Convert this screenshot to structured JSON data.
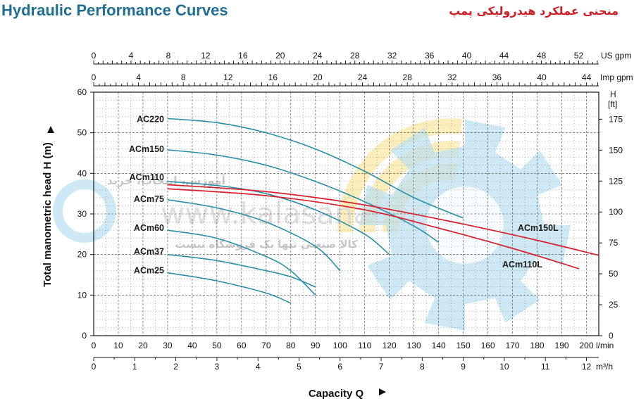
{
  "header": {
    "title_en": "Hydraulic Performance Curves",
    "title_fa": "منحنی عملکرد هیدرولیکی پمپ"
  },
  "watermark": {
    "line1": "آموزش، انتخاب، خرید",
    "line2": "www.kalasanati.ir",
    "line3": "کالا صنعتی تنها یک فروشگاه نیست"
  },
  "colors": {
    "blue_curve": "#2a8fa6",
    "red_curve": "#d81e2c",
    "grid": "#333333",
    "title": "#1f6f93",
    "title_fa": "#cc2026",
    "watermark_blue": "#b9dff0",
    "watermark_yellow": "#fbe7a6"
  },
  "chart_data": {
    "type": "line",
    "xlabel": "Capacity Q",
    "ylabel": "Total manometric head H (m)",
    "x_unit": "l/min",
    "xlim": [
      0,
      205
    ],
    "ylim": [
      0,
      60
    ],
    "x_ticks": [
      0,
      10,
      20,
      30,
      40,
      50,
      60,
      70,
      80,
      90,
      100,
      110,
      120,
      130,
      140,
      150,
      160,
      170,
      180,
      190,
      200
    ],
    "y_ticks": [
      0,
      10,
      20,
      30,
      40,
      50,
      60
    ],
    "grid": true,
    "secondary_axes": {
      "m3h": {
        "unit": "m³/h",
        "ticks": [
          0,
          1,
          2,
          3,
          4,
          5,
          6,
          7,
          8,
          9,
          10,
          11,
          12
        ]
      },
      "us_gpm": {
        "unit": "US gpm",
        "ticks": [
          0,
          4,
          8,
          12,
          16,
          20,
          24,
          28,
          32,
          36,
          40,
          44,
          48,
          52
        ]
      },
      "imp_gpm": {
        "unit": "Imp gpm",
        "ticks": [
          0,
          4,
          8,
          12,
          16,
          20,
          24,
          28,
          32,
          36,
          40,
          44
        ]
      },
      "ft": {
        "unit_line1": "H",
        "unit_line2": "[ft]",
        "ticks": [
          0,
          25,
          50,
          75,
          100,
          125,
          150,
          175
        ]
      }
    },
    "series": [
      {
        "name": "AC220",
        "color": "blue",
        "x": [
          30,
          50,
          70,
          90,
          110,
          130,
          150
        ],
        "y": [
          53.5,
          52.5,
          50,
          46,
          40.5,
          34,
          29
        ]
      },
      {
        "name": "ACm150",
        "color": "blue",
        "x": [
          30,
          50,
          70,
          90,
          110,
          130,
          140
        ],
        "y": [
          45.8,
          44.5,
          42,
          38,
          33,
          27,
          23
        ]
      },
      {
        "name": "ACm110",
        "color": "blue",
        "x": [
          30,
          50,
          70,
          90,
          110,
          120
        ],
        "y": [
          38,
          37,
          35,
          31,
          25,
          20
        ]
      },
      {
        "name": "ACm75",
        "color": "blue",
        "x": [
          30,
          50,
          70,
          90,
          100
        ],
        "y": [
          33.5,
          31.5,
          28,
          22,
          16
        ]
      },
      {
        "name": "ACm60",
        "color": "blue",
        "x": [
          30,
          50,
          70,
          80,
          90
        ],
        "y": [
          26,
          24,
          19.5,
          16,
          10
        ]
      },
      {
        "name": "ACm37",
        "color": "blue",
        "x": [
          30,
          50,
          70,
          80,
          90
        ],
        "y": [
          20,
          18.5,
          16,
          14.5,
          12
        ]
      },
      {
        "name": "ACm25",
        "color": "blue",
        "x": [
          30,
          50,
          70,
          80
        ],
        "y": [
          15.5,
          13.5,
          10.5,
          8
        ]
      },
      {
        "name": "ACm150L",
        "color": "red",
        "x": [
          30,
          70,
          110,
          150,
          180,
          205
        ],
        "y": [
          37.2,
          35.5,
          32.2,
          27.5,
          23.5,
          19.8
        ]
      },
      {
        "name": "ACm110L",
        "color": "red",
        "x": [
          30,
          70,
          110,
          140,
          170,
          197
        ],
        "y": [
          36.2,
          34.5,
          31,
          26.5,
          21.5,
          16.5
        ]
      }
    ]
  }
}
